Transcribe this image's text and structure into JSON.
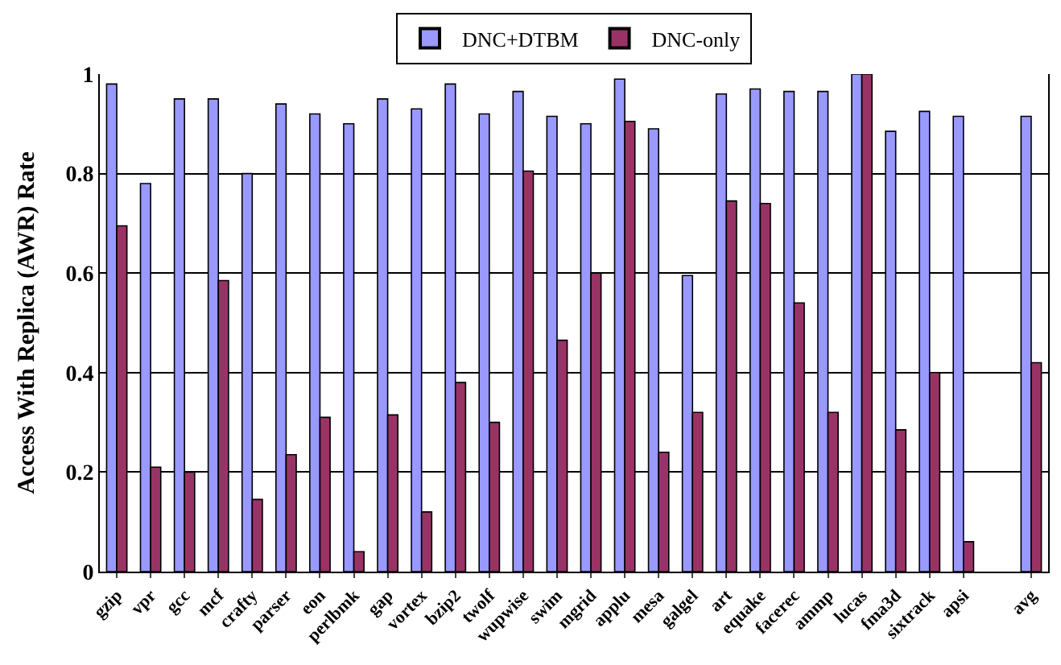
{
  "chart_data": {
    "type": "bar",
    "ylabel": "Access With Replica (AWR) Rate",
    "categories": [
      "gzip",
      "vpr",
      "gcc",
      "mcf",
      "crafty",
      "parser",
      "eon",
      "perlbmk",
      "gap",
      "vortex",
      "bzip2",
      "twolf",
      "wupwise",
      "swim",
      "mgrid",
      "applu",
      "mesa",
      "galgel",
      "art",
      "equake",
      "facerec",
      "ammp",
      "lucas",
      "fma3d",
      "sixtrack",
      "apsi",
      null,
      "avg"
    ],
    "series": [
      {
        "name": "DNC+DTBM",
        "color": "#9999ff",
        "values": [
          0.98,
          0.78,
          0.95,
          0.95,
          0.8,
          0.94,
          0.92,
          0.9,
          0.95,
          0.93,
          0.98,
          0.92,
          0.965,
          0.915,
          0.9,
          0.99,
          0.89,
          0.595,
          0.96,
          0.97,
          0.965,
          0.965,
          1.0,
          0.885,
          0.925,
          0.915,
          null,
          0.915
        ]
      },
      {
        "name": "DNC-only",
        "color": "#993366",
        "values": [
          0.695,
          0.21,
          0.2,
          0.585,
          0.145,
          0.235,
          0.31,
          0.04,
          0.315,
          0.12,
          0.38,
          0.3,
          0.805,
          0.465,
          0.6,
          0.905,
          0.24,
          0.32,
          0.745,
          0.74,
          0.54,
          0.32,
          1.0,
          0.285,
          0.4,
          0.06,
          null,
          0.42
        ]
      }
    ],
    "ylim": [
      0,
      1
    ],
    "yticks": [
      0,
      0.2,
      0.4,
      0.6,
      0.8,
      1
    ],
    "grid": "y",
    "legend": "top"
  }
}
